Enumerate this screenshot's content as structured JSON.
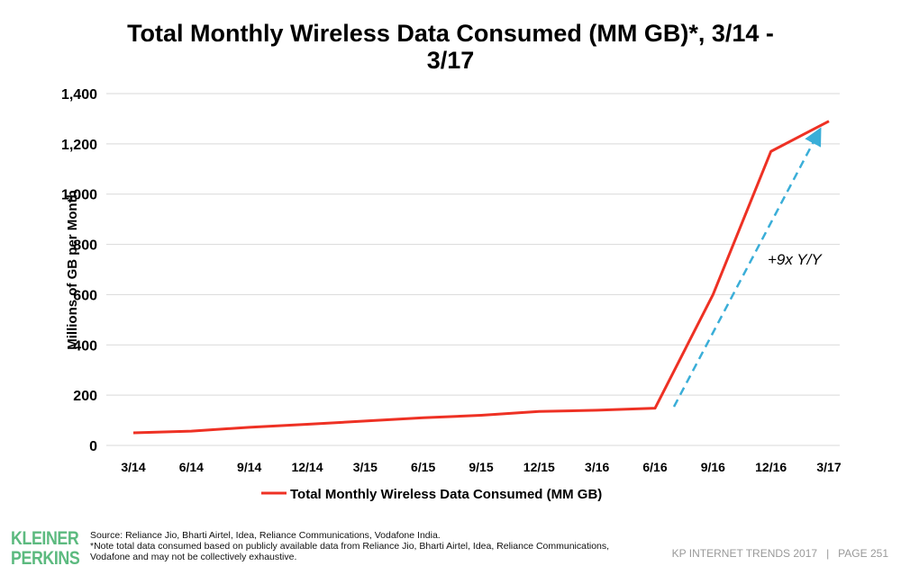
{
  "chart_data": {
    "type": "line",
    "title": "Total Monthly Wireless Data Consumed (MM GB)*, 3/14 - 3/17",
    "title_lines": [
      "Total Monthly Wireless Data Consumed (MM GB)*, 3/14 -",
      "3/17"
    ],
    "ylabel": "Millions of GB per Month",
    "xlabel": "",
    "ylim": [
      0,
      1400
    ],
    "yticks": [
      0,
      200,
      400,
      600,
      800,
      1000,
      1200,
      1400
    ],
    "ytick_labels": [
      "0",
      "200",
      "400",
      "600",
      "800",
      "1,000",
      "1,200",
      "1,400"
    ],
    "grid": true,
    "categories": [
      "3/14",
      "6/14",
      "9/14",
      "12/14",
      "3/15",
      "6/15",
      "9/15",
      "12/15",
      "3/16",
      "6/16",
      "9/16",
      "12/16",
      "3/17"
    ],
    "series": [
      {
        "name": "Total Monthly Wireless Data Consumed (MM GB)",
        "color": "#ee3124",
        "values": [
          50,
          57,
          72,
          84,
          97,
          110,
          120,
          135,
          140,
          148,
          600,
          1170,
          1290
        ]
      }
    ],
    "legend_position": "bottom",
    "annotation": {
      "text": "+9x Y/Y",
      "color": "#3aaed8",
      "style": "dashed arrow"
    }
  },
  "footer": {
    "source": "Source: Reliance Jio, Bharti Airtel, Idea, Reliance Communications, Vodafone India.",
    "note": "*Note total data consumed based on publicly available data from Reliance Jio, Bharti Airtel, Idea, Reliance Communications, Vodafone and may not be collectively exhaustive.",
    "logo": [
      "KLEINER",
      "PERKINS"
    ],
    "page": "KP INTERNET TRENDS 2017   |   PAGE 251"
  }
}
